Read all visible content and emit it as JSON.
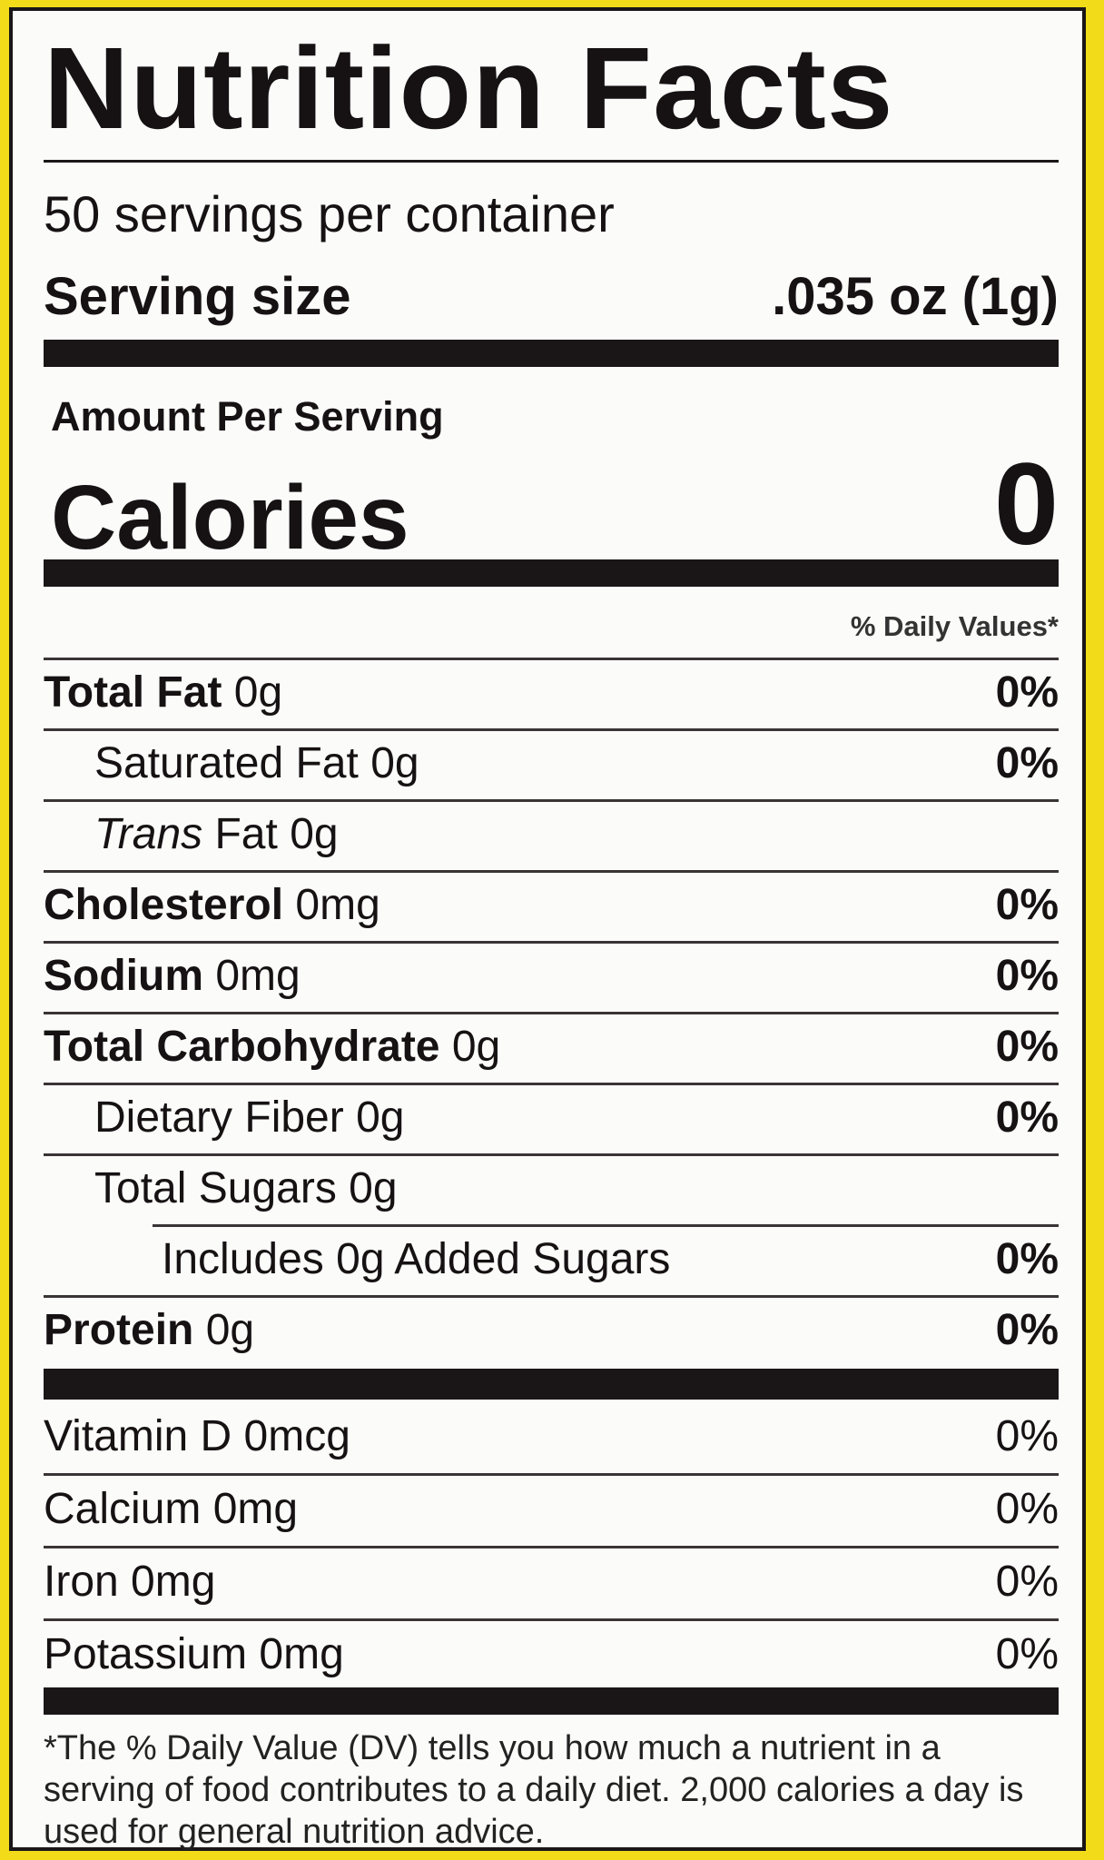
{
  "title": "Nutrition Facts",
  "servings_per_container": "50 servings per container",
  "serving_size": {
    "label": "Serving size",
    "value": ".035 oz (1g)"
  },
  "amount_per_serving": "Amount Per Serving",
  "calories": {
    "label": "Calories",
    "value": "0"
  },
  "daily_values_header": "% Daily Values*",
  "nutrients": [
    {
      "name": "Total Fat",
      "amount": "0g",
      "dv": "0%",
      "bold": true,
      "indent": 0
    },
    {
      "name": "Saturated Fat",
      "amount": "0g",
      "dv": "0%",
      "bold": false,
      "indent": 1
    },
    {
      "name": "Trans",
      "name_suffix": "Fat",
      "amount": "0g",
      "dv": "",
      "bold": false,
      "indent": 1
    },
    {
      "name": "Cholesterol",
      "amount": "0mg",
      "dv": "0%",
      "bold": true,
      "indent": 0
    },
    {
      "name": "Sodium",
      "amount": "0mg",
      "dv": "0%",
      "bold": true,
      "indent": 0
    },
    {
      "name": "Total Carbohydrate",
      "amount": "0g",
      "dv": "0%",
      "bold": true,
      "indent": 0
    },
    {
      "name": "Dietary Fiber",
      "amount": "0g",
      "dv": "0%",
      "bold": false,
      "indent": 1
    },
    {
      "name": "Total Sugars",
      "amount": "0g",
      "dv": "",
      "bold": false,
      "indent": 1
    },
    {
      "name": "Includes 0g Added Sugars",
      "amount": "",
      "dv": "0%",
      "bold": false,
      "indent": 2
    },
    {
      "name": "Protein",
      "amount": "0g",
      "dv": "0%",
      "bold": true,
      "indent": 0
    }
  ],
  "vitamins": [
    {
      "name": "Vitamin D 0mcg",
      "dv": "0%"
    },
    {
      "name": "Calcium 0mg",
      "dv": "0%"
    },
    {
      "name": "Iron 0mg",
      "dv": "0%"
    },
    {
      "name": "Potassium 0mg",
      "dv": "0%"
    }
  ],
  "footnote": "*The % Daily Value (DV) tells you how much a nutrient in a serving of food contributes to a daily diet. 2,000 calories a day is used for general nutrition advice.",
  "colors": {
    "background": "#f2dc1a",
    "label": "#fbfbfa",
    "ink": "#161214"
  }
}
